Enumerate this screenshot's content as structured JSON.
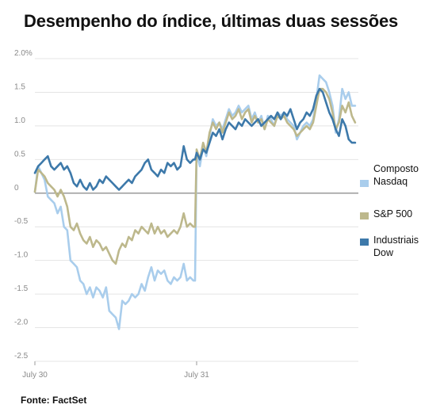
{
  "title": "Desempenho do índice, últimas duas sessões",
  "source": "Fonte: FactSet",
  "colors": {
    "nasdaq": "#a9cdec",
    "sp500": "#bdb88c",
    "dow": "#3d79aa",
    "zero_line": "#9a9a9a"
  },
  "chart_data": {
    "type": "line",
    "title": "Desempenho do índice, últimas duas sessões",
    "xlabel": "",
    "ylabel": "",
    "ylim": [
      -2.5,
      2.0
    ],
    "x_range": [
      0,
      200
    ],
    "grid": true,
    "legend_position": "right",
    "ytick_labels": [
      {
        "value": 2.0,
        "label": "2.0%"
      },
      {
        "value": 1.5,
        "label": "1.5"
      },
      {
        "value": 1.0,
        "label": "1.0"
      },
      {
        "value": 0.5,
        "label": "0.5"
      },
      {
        "value": 0,
        "label": "0"
      },
      {
        "value": -0.5,
        "label": "-0.5"
      },
      {
        "value": -1.0,
        "label": "-1.0"
      },
      {
        "value": -1.5,
        "label": "-1.5"
      },
      {
        "value": -2.0,
        "label": "-2.0"
      },
      {
        "value": -2.5,
        "label": "-2.5"
      }
    ],
    "xtick_labels": [
      {
        "value": 0,
        "label": "July 30"
      },
      {
        "value": 100,
        "label": "July 31"
      }
    ],
    "series": [
      {
        "name": "Composto Nasdaq",
        "name_lines": [
          "Composto",
          "Nasdaq"
        ],
        "color_key": "nasdaq",
        "points": [
          [
            0,
            0.02
          ],
          [
            2,
            0.4
          ],
          [
            4,
            0.3
          ],
          [
            6,
            0.2
          ],
          [
            8,
            -0.05
          ],
          [
            10,
            -0.1
          ],
          [
            12,
            -0.15
          ],
          [
            14,
            -0.3
          ],
          [
            16,
            -0.2
          ],
          [
            18,
            -0.5
          ],
          [
            20,
            -0.55
          ],
          [
            22,
            -1.0
          ],
          [
            24,
            -1.05
          ],
          [
            26,
            -1.1
          ],
          [
            28,
            -1.3
          ],
          [
            30,
            -1.35
          ],
          [
            32,
            -1.5
          ],
          [
            34,
            -1.4
          ],
          [
            36,
            -1.55
          ],
          [
            38,
            -1.4
          ],
          [
            40,
            -1.45
          ],
          [
            42,
            -1.55
          ],
          [
            44,
            -1.4
          ],
          [
            46,
            -1.75
          ],
          [
            48,
            -1.8
          ],
          [
            50,
            -1.85
          ],
          [
            52,
            -2.02
          ],
          [
            54,
            -1.6
          ],
          [
            56,
            -1.65
          ],
          [
            58,
            -1.6
          ],
          [
            60,
            -1.5
          ],
          [
            62,
            -1.55
          ],
          [
            64,
            -1.5
          ],
          [
            66,
            -1.35
          ],
          [
            68,
            -1.45
          ],
          [
            70,
            -1.25
          ],
          [
            72,
            -1.1
          ],
          [
            74,
            -1.3
          ],
          [
            76,
            -1.15
          ],
          [
            78,
            -1.2
          ],
          [
            80,
            -1.15
          ],
          [
            82,
            -1.3
          ],
          [
            84,
            -1.35
          ],
          [
            86,
            -1.25
          ],
          [
            88,
            -1.3
          ],
          [
            90,
            -1.25
          ],
          [
            92,
            -1.05
          ],
          [
            94,
            -1.3
          ],
          [
            96,
            -1.25
          ],
          [
            98,
            -1.3
          ],
          [
            99,
            -1.3
          ],
          [
            100,
            0.6
          ],
          [
            102,
            0.4
          ],
          [
            104,
            0.7
          ],
          [
            106,
            0.55
          ],
          [
            108,
            0.85
          ],
          [
            110,
            1.1
          ],
          [
            112,
            1.0
          ],
          [
            114,
            1.05
          ],
          [
            116,
            0.95
          ],
          [
            118,
            1.1
          ],
          [
            120,
            1.25
          ],
          [
            122,
            1.15
          ],
          [
            124,
            1.2
          ],
          [
            126,
            1.3
          ],
          [
            128,
            1.2
          ],
          [
            130,
            1.25
          ],
          [
            132,
            1.3
          ],
          [
            134,
            1.1
          ],
          [
            136,
            1.2
          ],
          [
            138,
            1.05
          ],
          [
            140,
            1.15
          ],
          [
            142,
            0.95
          ],
          [
            144,
            1.15
          ],
          [
            146,
            1.1
          ],
          [
            148,
            1.0
          ],
          [
            150,
            1.2
          ],
          [
            152,
            1.15
          ],
          [
            154,
            1.2
          ],
          [
            156,
            1.1
          ],
          [
            158,
            1.05
          ],
          [
            160,
            1.0
          ],
          [
            162,
            0.8
          ],
          [
            164,
            0.9
          ],
          [
            166,
            1.0
          ],
          [
            168,
            1.05
          ],
          [
            170,
            1.0
          ],
          [
            172,
            1.1
          ],
          [
            174,
            1.4
          ],
          [
            176,
            1.75
          ],
          [
            178,
            1.7
          ],
          [
            180,
            1.65
          ],
          [
            182,
            1.5
          ],
          [
            184,
            1.3
          ],
          [
            186,
            0.9
          ],
          [
            188,
            1.1
          ],
          [
            190,
            1.55
          ],
          [
            192,
            1.4
          ],
          [
            194,
            1.5
          ],
          [
            196,
            1.3
          ],
          [
            198,
            1.3
          ]
        ]
      },
      {
        "name": "S&P 500",
        "name_lines": [
          "S&P 500"
        ],
        "color_key": "sp500",
        "points": [
          [
            0,
            0.02
          ],
          [
            2,
            0.35
          ],
          [
            4,
            0.3
          ],
          [
            6,
            0.25
          ],
          [
            8,
            0.15
          ],
          [
            10,
            0.1
          ],
          [
            12,
            0.05
          ],
          [
            14,
            -0.05
          ],
          [
            16,
            0.05
          ],
          [
            18,
            -0.05
          ],
          [
            20,
            -0.2
          ],
          [
            22,
            -0.5
          ],
          [
            24,
            -0.55
          ],
          [
            26,
            -0.45
          ],
          [
            28,
            -0.6
          ],
          [
            30,
            -0.7
          ],
          [
            32,
            -0.75
          ],
          [
            34,
            -0.65
          ],
          [
            36,
            -0.8
          ],
          [
            38,
            -0.7
          ],
          [
            40,
            -0.75
          ],
          [
            42,
            -0.85
          ],
          [
            44,
            -0.8
          ],
          [
            46,
            -0.9
          ],
          [
            48,
            -1.0
          ],
          [
            50,
            -1.05
          ],
          [
            52,
            -0.85
          ],
          [
            54,
            -0.75
          ],
          [
            56,
            -0.8
          ],
          [
            58,
            -0.65
          ],
          [
            60,
            -0.7
          ],
          [
            62,
            -0.55
          ],
          [
            64,
            -0.6
          ],
          [
            66,
            -0.5
          ],
          [
            68,
            -0.55
          ],
          [
            70,
            -0.6
          ],
          [
            72,
            -0.45
          ],
          [
            74,
            -0.6
          ],
          [
            76,
            -0.5
          ],
          [
            78,
            -0.6
          ],
          [
            80,
            -0.55
          ],
          [
            82,
            -0.65
          ],
          [
            84,
            -0.6
          ],
          [
            86,
            -0.55
          ],
          [
            88,
            -0.6
          ],
          [
            90,
            -0.5
          ],
          [
            92,
            -0.3
          ],
          [
            94,
            -0.5
          ],
          [
            96,
            -0.45
          ],
          [
            98,
            -0.5
          ],
          [
            99,
            -0.5
          ],
          [
            100,
            0.65
          ],
          [
            102,
            0.5
          ],
          [
            104,
            0.75
          ],
          [
            106,
            0.6
          ],
          [
            108,
            0.9
          ],
          [
            110,
            1.05
          ],
          [
            112,
            0.95
          ],
          [
            114,
            1.05
          ],
          [
            116,
            0.9
          ],
          [
            118,
            1.05
          ],
          [
            120,
            1.2
          ],
          [
            122,
            1.1
          ],
          [
            124,
            1.15
          ],
          [
            126,
            1.25
          ],
          [
            128,
            1.1
          ],
          [
            130,
            1.2
          ],
          [
            132,
            1.25
          ],
          [
            134,
            1.05
          ],
          [
            136,
            1.15
          ],
          [
            138,
            1.05
          ],
          [
            140,
            1.1
          ],
          [
            142,
            0.95
          ],
          [
            144,
            1.1
          ],
          [
            146,
            1.05
          ],
          [
            148,
            1.0
          ],
          [
            150,
            1.15
          ],
          [
            152,
            1.1
          ],
          [
            154,
            1.15
          ],
          [
            156,
            1.05
          ],
          [
            158,
            1.0
          ],
          [
            160,
            0.95
          ],
          [
            162,
            0.85
          ],
          [
            164,
            0.9
          ],
          [
            166,
            0.95
          ],
          [
            168,
            1.0
          ],
          [
            170,
            0.95
          ],
          [
            172,
            1.05
          ],
          [
            174,
            1.3
          ],
          [
            176,
            1.55
          ],
          [
            178,
            1.55
          ],
          [
            180,
            1.5
          ],
          [
            182,
            1.4
          ],
          [
            184,
            1.2
          ],
          [
            186,
            0.95
          ],
          [
            188,
            1.05
          ],
          [
            190,
            1.3
          ],
          [
            192,
            1.2
          ],
          [
            194,
            1.35
          ],
          [
            196,
            1.15
          ],
          [
            198,
            1.05
          ]
        ]
      },
      {
        "name": "Industriais Dow",
        "name_lines": [
          "Industriais",
          "Dow"
        ],
        "color_key": "dow",
        "points": [
          [
            0,
            0.3
          ],
          [
            2,
            0.4
          ],
          [
            4,
            0.45
          ],
          [
            6,
            0.5
          ],
          [
            8,
            0.55
          ],
          [
            10,
            0.4
          ],
          [
            12,
            0.35
          ],
          [
            14,
            0.4
          ],
          [
            16,
            0.45
          ],
          [
            18,
            0.35
          ],
          [
            20,
            0.4
          ],
          [
            22,
            0.3
          ],
          [
            24,
            0.15
          ],
          [
            26,
            0.1
          ],
          [
            28,
            0.2
          ],
          [
            30,
            0.1
          ],
          [
            32,
            0.05
          ],
          [
            34,
            0.15
          ],
          [
            36,
            0.05
          ],
          [
            38,
            0.1
          ],
          [
            40,
            0.2
          ],
          [
            42,
            0.15
          ],
          [
            44,
            0.25
          ],
          [
            46,
            0.2
          ],
          [
            48,
            0.15
          ],
          [
            50,
            0.1
          ],
          [
            52,
            0.05
          ],
          [
            54,
            0.1
          ],
          [
            56,
            0.15
          ],
          [
            58,
            0.2
          ],
          [
            60,
            0.15
          ],
          [
            62,
            0.25
          ],
          [
            64,
            0.3
          ],
          [
            66,
            0.35
          ],
          [
            68,
            0.45
          ],
          [
            70,
            0.5
          ],
          [
            72,
            0.35
          ],
          [
            74,
            0.3
          ],
          [
            76,
            0.25
          ],
          [
            78,
            0.35
          ],
          [
            80,
            0.3
          ],
          [
            82,
            0.45
          ],
          [
            84,
            0.4
          ],
          [
            86,
            0.45
          ],
          [
            88,
            0.35
          ],
          [
            90,
            0.4
          ],
          [
            92,
            0.7
          ],
          [
            94,
            0.5
          ],
          [
            96,
            0.45
          ],
          [
            98,
            0.5
          ],
          [
            99,
            0.5
          ],
          [
            100,
            0.6
          ],
          [
            102,
            0.5
          ],
          [
            104,
            0.65
          ],
          [
            106,
            0.6
          ],
          [
            108,
            0.75
          ],
          [
            110,
            0.9
          ],
          [
            112,
            0.85
          ],
          [
            114,
            0.95
          ],
          [
            116,
            0.8
          ],
          [
            118,
            0.95
          ],
          [
            120,
            1.05
          ],
          [
            122,
            1.0
          ],
          [
            124,
            0.95
          ],
          [
            126,
            1.05
          ],
          [
            128,
            1.0
          ],
          [
            130,
            1.1
          ],
          [
            132,
            1.05
          ],
          [
            134,
            1.0
          ],
          [
            136,
            1.05
          ],
          [
            138,
            1.1
          ],
          [
            140,
            1.0
          ],
          [
            142,
            1.05
          ],
          [
            144,
            1.1
          ],
          [
            146,
            1.15
          ],
          [
            148,
            1.1
          ],
          [
            150,
            1.2
          ],
          [
            152,
            1.1
          ],
          [
            154,
            1.2
          ],
          [
            156,
            1.15
          ],
          [
            158,
            1.25
          ],
          [
            160,
            1.1
          ],
          [
            162,
            0.95
          ],
          [
            164,
            1.05
          ],
          [
            166,
            1.1
          ],
          [
            168,
            1.2
          ],
          [
            170,
            1.15
          ],
          [
            172,
            1.25
          ],
          [
            174,
            1.45
          ],
          [
            176,
            1.55
          ],
          [
            178,
            1.5
          ],
          [
            180,
            1.35
          ],
          [
            182,
            1.2
          ],
          [
            184,
            1.1
          ],
          [
            186,
            0.95
          ],
          [
            188,
            0.85
          ],
          [
            190,
            1.1
          ],
          [
            192,
            1.0
          ],
          [
            194,
            0.8
          ],
          [
            196,
            0.75
          ],
          [
            198,
            0.75
          ]
        ]
      }
    ]
  }
}
